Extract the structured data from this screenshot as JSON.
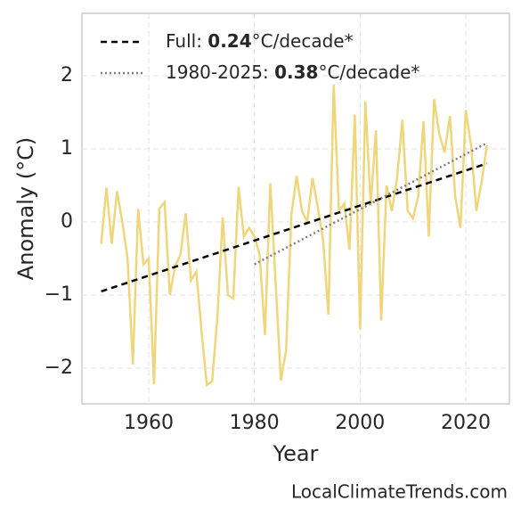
{
  "chart_data": {
    "type": "line",
    "x_label": "Year",
    "y_label": "Anomaly (°C)",
    "source": "LocalClimateTrends.com",
    "xlim": [
      1947.36,
      2028.26
    ],
    "ylim": [
      -2.488,
      2.854
    ],
    "xticks": [
      1960,
      1980,
      2000,
      2020
    ],
    "yticks": [
      {
        "value": -2,
        "label": "−2"
      },
      {
        "value": -1,
        "label": "−1"
      },
      0,
      1,
      2
    ],
    "grid": true,
    "legend": "upper left",
    "x": [
      1951,
      1952,
      1953,
      1954,
      1955,
      1956,
      1957,
      1958,
      1959,
      1960,
      1961,
      1962,
      1963,
      1964,
      1965,
      1966,
      1967,
      1968,
      1969,
      1970,
      1971,
      1972,
      1973,
      1974,
      1975,
      1976,
      1977,
      1978,
      1979,
      1980,
      1981,
      1982,
      1983,
      1984,
      1985,
      1986,
      1987,
      1988,
      1989,
      1990,
      1991,
      1992,
      1993,
      1994,
      1995,
      1996,
      1997,
      1998,
      1999,
      2000,
      2001,
      2002,
      2003,
      2004,
      2005,
      2006,
      2007,
      2008,
      2009,
      2010,
      2011,
      2012,
      2013,
      2014,
      2015,
      2016,
      2017,
      2018,
      2019,
      2020,
      2021,
      2022,
      2023,
      2024
    ],
    "values": [
      -0.3,
      0.47,
      -0.3,
      0.42,
      0.0,
      -0.5,
      -1.95,
      0.18,
      -0.58,
      -0.5,
      -2.22,
      0.18,
      0.27,
      -1.0,
      -0.6,
      -0.45,
      0.12,
      -0.8,
      -0.68,
      -1.5,
      -2.23,
      -2.18,
      -1.3,
      0.06,
      -1.0,
      -1.05,
      0.48,
      -0.2,
      -0.08,
      -0.2,
      -0.45,
      -1.55,
      0.53,
      -0.8,
      -2.17,
      -1.75,
      0.1,
      0.63,
      0.15,
      0.0,
      0.6,
      0.2,
      -0.25,
      -1.27,
      1.88,
      0.15,
      0.25,
      -0.38,
      1.47,
      -1.47,
      1.65,
      0.23,
      1.25,
      -1.35,
      0.5,
      0.15,
      0.6,
      1.4,
      0.15,
      0.05,
      0.35,
      1.38,
      -0.2,
      1.68,
      1.2,
      0.95,
      1.45,
      0.35,
      -0.08,
      1.53,
      1.05,
      0.15,
      0.55,
      1.05
    ],
    "color": "#f0d67a",
    "trends": [
      {
        "name": [
          "Full: ",
          "0.24",
          "°C/decade*"
        ],
        "color": "#000000",
        "dash": "7,5",
        "x": [
          1951,
          2024
        ],
        "values": [
          -0.95,
          0.8
        ]
      },
      {
        "name": [
          "1980-2025: ",
          "0.38",
          "°C/decade*"
        ],
        "color": "#808080",
        "dash": "2,3",
        "x": [
          1980,
          2024
        ],
        "values": [
          -0.58,
          1.08
        ]
      }
    ]
  }
}
